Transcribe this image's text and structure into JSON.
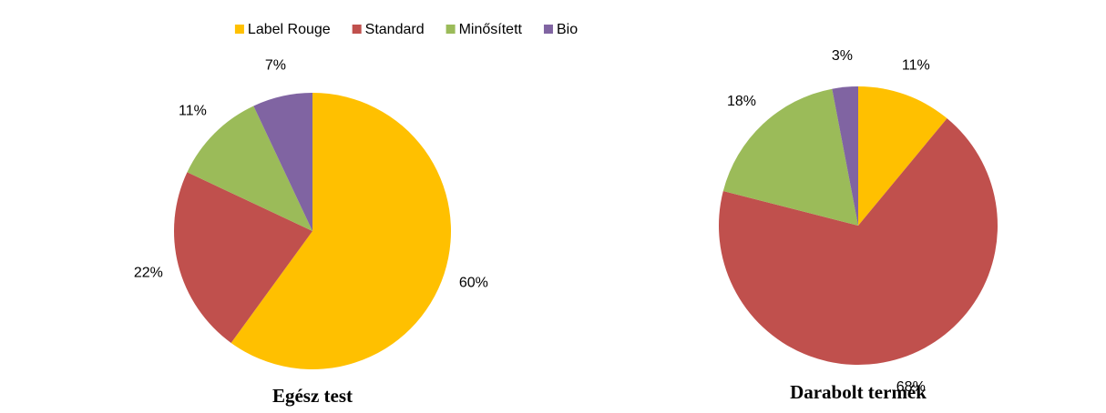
{
  "chart_data": [
    {
      "type": "pie",
      "title": "Egész test",
      "categories": [
        "Label Rouge",
        "Standard",
        "Minősített",
        "Bio"
      ],
      "colors": [
        "#FFC000",
        "#C0504D",
        "#9BBB59",
        "#8064A2"
      ],
      "values": [
        60,
        22,
        11,
        7
      ],
      "value_labels": [
        "60%",
        "22%",
        "11%",
        "7%"
      ]
    },
    {
      "type": "pie",
      "title": "Darabolt termék",
      "categories": [
        "Label Rouge",
        "Standard",
        "Minősített",
        "Bio"
      ],
      "colors": [
        "#FFC000",
        "#C0504D",
        "#9BBB59",
        "#8064A2"
      ],
      "values": [
        11,
        68,
        18,
        3
      ],
      "value_labels": [
        "11%",
        "68%",
        "18%",
        "3%"
      ]
    }
  ]
}
